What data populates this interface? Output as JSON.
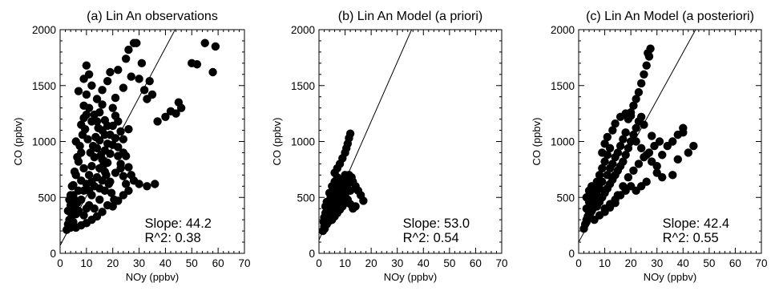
{
  "chart_data": [
    {
      "type": "scatter",
      "title": "(a) Lin An observations",
      "xlabel": "NOy (ppbv)",
      "ylabel": "CO (ppbv)",
      "xlim": [
        0,
        70
      ],
      "ylim": [
        0,
        2000
      ],
      "xticks": [
        "0",
        "10",
        "20",
        "30",
        "40",
        "50",
        "60",
        "70"
      ],
      "yticks": [
        "0",
        "500",
        "1000",
        "1500",
        "2000"
      ],
      "fit_line": {
        "intercept": 70,
        "slope": 44.2
      },
      "annotation": {
        "slope_text": "Slope: 44.2",
        "r2_text": "R^2: 0.38"
      },
      "points": [
        [
          2.5,
          210
        ],
        [
          3,
          260
        ],
        [
          3.5,
          300
        ],
        [
          4,
          230
        ],
        [
          4.5,
          340
        ],
        [
          5,
          280
        ],
        [
          5.5,
          400
        ],
        [
          6,
          350
        ],
        [
          6.5,
          450
        ],
        [
          7,
          380
        ],
        [
          4,
          520
        ],
        [
          5,
          610
        ],
        [
          6,
          700
        ],
        [
          7,
          820
        ],
        [
          8,
          900
        ],
        [
          9,
          760
        ],
        [
          6,
          1000
        ],
        [
          8,
          1150
        ],
        [
          9,
          1320
        ],
        [
          10,
          1240
        ],
        [
          7,
          1450
        ],
        [
          9,
          1560
        ],
        [
          10,
          1680
        ],
        [
          11,
          1600
        ],
        [
          12,
          1500
        ],
        [
          8,
          480
        ],
        [
          9,
          560
        ],
        [
          10,
          620
        ],
        [
          11,
          700
        ],
        [
          12,
          780
        ],
        [
          13,
          860
        ],
        [
          14,
          940
        ],
        [
          15,
          1010
        ],
        [
          16,
          1100
        ],
        [
          17,
          1190
        ],
        [
          11,
          430
        ],
        [
          12,
          520
        ],
        [
          13,
          600
        ],
        [
          14,
          680
        ],
        [
          15,
          760
        ],
        [
          16,
          840
        ],
        [
          17,
          920
        ],
        [
          18,
          980
        ],
        [
          19,
          1060
        ],
        [
          20,
          1140
        ],
        [
          13,
          400
        ],
        [
          15,
          480
        ],
        [
          17,
          560
        ],
        [
          19,
          640
        ],
        [
          21,
          720
        ],
        [
          23,
          800
        ],
        [
          25,
          870
        ],
        [
          22,
          950
        ],
        [
          24,
          1020
        ],
        [
          26,
          1110
        ],
        [
          14,
          1380
        ],
        [
          16,
          1460
        ],
        [
          18,
          1540
        ],
        [
          19,
          1620
        ],
        [
          20,
          1300
        ],
        [
          21,
          1230
        ],
        [
          22,
          1180
        ],
        [
          23,
          1090
        ],
        [
          24,
          900
        ],
        [
          26,
          770
        ],
        [
          27,
          700
        ],
        [
          28,
          650
        ],
        [
          30,
          620
        ],
        [
          33,
          600
        ],
        [
          36,
          620
        ],
        [
          29,
          1880
        ],
        [
          31,
          1700
        ],
        [
          30,
          1560
        ],
        [
          32,
          1460
        ],
        [
          33,
          1380
        ],
        [
          35,
          1420
        ],
        [
          37,
          1180
        ],
        [
          40,
          1220
        ],
        [
          42,
          1270
        ],
        [
          44,
          1250
        ],
        [
          46,
          1300
        ],
        [
          45,
          1350
        ],
        [
          50,
          1700
        ],
        [
          52,
          1690
        ],
        [
          55,
          1880
        ],
        [
          58,
          1620
        ],
        [
          59,
          1850
        ],
        [
          34,
          1540
        ],
        [
          28,
          1880
        ],
        [
          26,
          1820
        ],
        [
          25,
          1740
        ],
        [
          27,
          1580
        ],
        [
          24,
          1480
        ],
        [
          22,
          1640
        ],
        [
          21,
          1390
        ],
        [
          9,
          340
        ],
        [
          10,
          400
        ],
        [
          11,
          560
        ],
        [
          12,
          640
        ],
        [
          8,
          650
        ],
        [
          7,
          560
        ],
        [
          6,
          470
        ],
        [
          5,
          520
        ],
        [
          4,
          430
        ],
        [
          3,
          380
        ],
        [
          3.5,
          480
        ],
        [
          4.5,
          600
        ],
        [
          5.5,
          730
        ],
        [
          6.5,
          860
        ],
        [
          7.5,
          960
        ],
        [
          8.5,
          1060
        ],
        [
          9.5,
          1110
        ],
        [
          10.5,
          1020
        ],
        [
          11.5,
          900
        ],
        [
          12.5,
          960
        ],
        [
          13.5,
          1040
        ],
        [
          14.5,
          1120
        ],
        [
          15.5,
          880
        ],
        [
          16.5,
          790
        ],
        [
          17.5,
          700
        ],
        [
          18.5,
          620
        ],
        [
          19.5,
          540
        ],
        [
          20.5,
          480
        ],
        [
          18,
          430
        ],
        [
          16,
          370
        ],
        [
          14,
          330
        ],
        [
          12,
          300
        ],
        [
          10,
          270
        ],
        [
          8,
          250
        ],
        [
          6,
          230
        ],
        [
          15,
          580
        ],
        [
          16,
          650
        ],
        [
          17,
          730
        ],
        [
          18,
          810
        ],
        [
          19,
          890
        ],
        [
          20,
          970
        ],
        [
          21,
          1030
        ],
        [
          22,
          870
        ],
        [
          23,
          760
        ],
        [
          24,
          690
        ],
        [
          25,
          620
        ],
        [
          26,
          560
        ],
        [
          24,
          520
        ],
        [
          22,
          470
        ],
        [
          20,
          420
        ],
        [
          9,
          1210
        ],
        [
          10,
          1420
        ],
        [
          11,
          1300
        ],
        [
          12,
          1180
        ],
        [
          13,
          1240
        ],
        [
          14,
          1180
        ],
        [
          15,
          1260
        ],
        [
          16,
          1330
        ],
        [
          17,
          1060
        ],
        [
          18,
          1140
        ]
      ]
    },
    {
      "type": "scatter",
      "title": "(b) Lin An Model (a priori)",
      "xlabel": "NOy (ppbv)",
      "ylabel": "CO (ppbv)",
      "xlim": [
        0,
        70
      ],
      "ylim": [
        0,
        2000
      ],
      "xticks": [
        "0",
        "10",
        "20",
        "30",
        "40",
        "50",
        "60",
        "70"
      ],
      "yticks": [
        "0",
        "500",
        "1000",
        "1500",
        "2000"
      ],
      "fit_line": {
        "intercept": 120,
        "slope": 53.0
      },
      "annotation": {
        "slope_text": "Slope: 53.0",
        "r2_text": "R^2: 0.54"
      },
      "points": [
        [
          1.5,
          200
        ],
        [
          2,
          240
        ],
        [
          2.5,
          280
        ],
        [
          3,
          300
        ],
        [
          3.5,
          330
        ],
        [
          4,
          360
        ],
        [
          2,
          320
        ],
        [
          2.5,
          360
        ],
        [
          3,
          400
        ],
        [
          3.5,
          430
        ],
        [
          4,
          470
        ],
        [
          4.5,
          500
        ],
        [
          5,
          520
        ],
        [
          5.5,
          540
        ],
        [
          6,
          560
        ],
        [
          3,
          460
        ],
        [
          4,
          540
        ],
        [
          5,
          600
        ],
        [
          6,
          640
        ],
        [
          7,
          680
        ],
        [
          4.5,
          380
        ],
        [
          5.5,
          420
        ],
        [
          6.5,
          460
        ],
        [
          7.5,
          500
        ],
        [
          8.5,
          540
        ],
        [
          9.5,
          580
        ],
        [
          6,
          720
        ],
        [
          7,
          760
        ],
        [
          8,
          800
        ],
        [
          9,
          850
        ],
        [
          10,
          900
        ],
        [
          10.5,
          940
        ],
        [
          11,
          980
        ],
        [
          11.5,
          1030
        ],
        [
          12,
          1070
        ],
        [
          8,
          620
        ],
        [
          9,
          660
        ],
        [
          10,
          700
        ],
        [
          11,
          620
        ],
        [
          12,
          560
        ],
        [
          13,
          640
        ],
        [
          14,
          600
        ],
        [
          15,
          560
        ],
        [
          16,
          520
        ],
        [
          17,
          470
        ],
        [
          8,
          440
        ],
        [
          9,
          480
        ],
        [
          10,
          520
        ],
        [
          11,
          480
        ],
        [
          12,
          440
        ],
        [
          13,
          400
        ],
        [
          14,
          420
        ],
        [
          5,
          300
        ],
        [
          6,
          330
        ],
        [
          7,
          360
        ],
        [
          8,
          390
        ],
        [
          9,
          420
        ],
        [
          10,
          450
        ],
        [
          3,
          260
        ],
        [
          4,
          290
        ],
        [
          5,
          340
        ],
        [
          6,
          380
        ],
        [
          7,
          410
        ],
        [
          7.5,
          580
        ],
        [
          8.5,
          560
        ],
        [
          9.5,
          620
        ],
        [
          10.5,
          660
        ],
        [
          11.5,
          700
        ],
        [
          12.5,
          680
        ],
        [
          6.5,
          600
        ],
        [
          5,
          450
        ],
        [
          4,
          400
        ],
        [
          3.5,
          380
        ],
        [
          2.5,
          420
        ],
        [
          1.8,
          280
        ],
        [
          2.2,
          220
        ]
      ]
    },
    {
      "type": "scatter",
      "title": "(c) Lin An Model (a posteriori)",
      "xlabel": "NOy (ppbv)",
      "ylabel": "CO (ppbv)",
      "xlim": [
        0,
        70
      ],
      "ylim": [
        0,
        2000
      ],
      "xticks": [
        "0",
        "10",
        "20",
        "30",
        "40",
        "50",
        "60",
        "70"
      ],
      "yticks": [
        "0",
        "500",
        "1000",
        "1500",
        "2000"
      ],
      "fit_line": {
        "intercept": 100,
        "slope": 42.4
      },
      "annotation": {
        "slope_text": "Slope: 42.4",
        "r2_text": "R^2: 0.55"
      },
      "points": [
        [
          2,
          220
        ],
        [
          2.5,
          260
        ],
        [
          3,
          300
        ],
        [
          3.5,
          330
        ],
        [
          4,
          360
        ],
        [
          4.5,
          390
        ],
        [
          5,
          420
        ],
        [
          5.5,
          450
        ],
        [
          6,
          480
        ],
        [
          6.5,
          510
        ],
        [
          3,
          400
        ],
        [
          4,
          460
        ],
        [
          5,
          520
        ],
        [
          6,
          580
        ],
        [
          7,
          640
        ],
        [
          8,
          700
        ],
        [
          9,
          760
        ],
        [
          10,
          820
        ],
        [
          11,
          880
        ],
        [
          12,
          940
        ],
        [
          7,
          420
        ],
        [
          8,
          460
        ],
        [
          9,
          500
        ],
        [
          10,
          540
        ],
        [
          11,
          580
        ],
        [
          12,
          620
        ],
        [
          13,
          660
        ],
        [
          14,
          700
        ],
        [
          15,
          740
        ],
        [
          16,
          780
        ],
        [
          10,
          400
        ],
        [
          12,
          440
        ],
        [
          14,
          480
        ],
        [
          16,
          520
        ],
        [
          18,
          560
        ],
        [
          20,
          600
        ],
        [
          17,
          820
        ],
        [
          18,
          880
        ],
        [
          19,
          940
        ],
        [
          20,
          1000
        ],
        [
          21,
          1060
        ],
        [
          22,
          1120
        ],
        [
          23,
          1180
        ],
        [
          24,
          1220
        ],
        [
          25,
          1150
        ],
        [
          20,
          1260
        ],
        [
          21,
          1320
        ],
        [
          22,
          1380
        ],
        [
          23,
          1440
        ],
        [
          24,
          1520
        ],
        [
          25,
          1600
        ],
        [
          26,
          1680
        ],
        [
          27,
          1760
        ],
        [
          27.5,
          1830
        ],
        [
          26.5,
          1790
        ],
        [
          22,
          1000
        ],
        [
          24,
          940
        ],
        [
          26,
          880
        ],
        [
          28,
          820
        ],
        [
          30,
          780
        ],
        [
          32,
          880
        ],
        [
          34,
          960
        ],
        [
          36,
          1000
        ],
        [
          38,
          1060
        ],
        [
          40,
          1120
        ],
        [
          40,
          1080
        ],
        [
          44,
          960
        ],
        [
          42,
          900
        ],
        [
          38,
          840
        ],
        [
          36,
          700
        ],
        [
          15,
          900
        ],
        [
          16,
          960
        ],
        [
          17,
          1020
        ],
        [
          18,
          1080
        ],
        [
          19,
          1200
        ],
        [
          20,
          1230
        ],
        [
          13,
          800
        ],
        [
          14,
          860
        ],
        [
          12,
          760
        ],
        [
          11,
          700
        ],
        [
          9,
          640
        ],
        [
          8,
          580
        ],
        [
          7,
          520
        ],
        [
          6,
          470
        ],
        [
          5,
          380
        ],
        [
          4,
          330
        ],
        [
          3,
          280
        ],
        [
          6,
          300
        ],
        [
          8,
          340
        ],
        [
          10,
          370
        ],
        [
          12,
          410
        ],
        [
          14,
          450
        ],
        [
          15,
          520
        ],
        [
          17,
          600
        ],
        [
          19,
          680
        ],
        [
          21,
          740
        ],
        [
          23,
          800
        ],
        [
          25,
          860
        ],
        [
          27,
          900
        ],
        [
          29,
          960
        ],
        [
          31,
          1000
        ],
        [
          28,
          1050
        ],
        [
          30,
          720
        ],
        [
          32,
          680
        ],
        [
          26,
          640
        ],
        [
          24,
          600
        ],
        [
          22,
          560
        ],
        [
          9,
          900
        ],
        [
          10,
          980
        ],
        [
          11,
          1040
        ],
        [
          13,
          1100
        ],
        [
          14,
          1160
        ],
        [
          16,
          1220
        ],
        [
          18,
          1250
        ],
        [
          5,
          600
        ],
        [
          4,
          560
        ],
        [
          3,
          500
        ]
      ]
    }
  ]
}
